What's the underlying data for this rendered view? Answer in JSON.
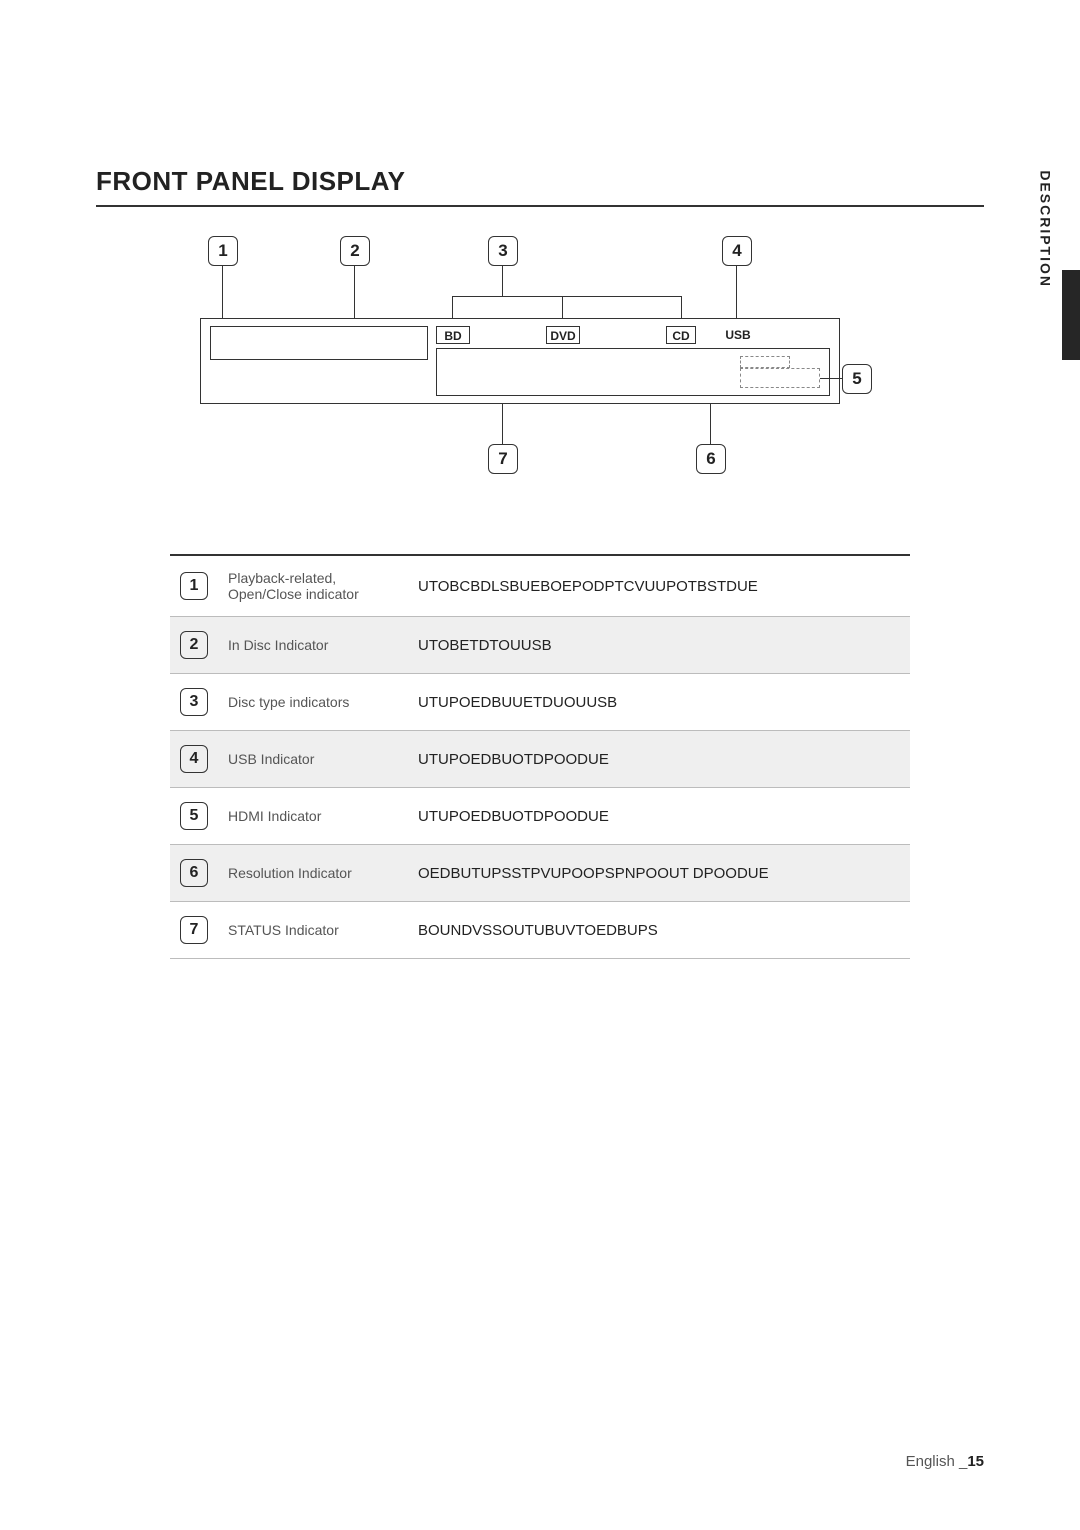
{
  "title": "FRONT PANEL DISPLAY",
  "side_label": "DESCRIPTION",
  "diagram": {
    "badges": {
      "bd": "BD",
      "dvd": "DVD",
      "cd": "CD",
      "usb": "USB"
    },
    "numbers": [
      "1",
      "2",
      "3",
      "4",
      "5",
      "6",
      "7"
    ]
  },
  "table": {
    "rows": [
      {
        "num": "1",
        "name": "Playback-related,\nOpen/Close indicator",
        "desc": "UTOBCBDLSBUEBOEPODPTCVUUPOTBSTDUE"
      },
      {
        "num": "2",
        "name": "In Disc Indicator",
        "desc": "UTOBETDTOUUSB"
      },
      {
        "num": "3",
        "name": "Disc type indicators",
        "desc": "UTUPOEDBUUETDUOUUSB"
      },
      {
        "num": "4",
        "name": "USB Indicator",
        "desc": "UTUPOEDBUOTDPOODUE"
      },
      {
        "num": "5",
        "name": "HDMI Indicator",
        "desc": "UTUPOEDBUOTDPOODUE"
      },
      {
        "num": "6",
        "name": "Resolution Indicator",
        "desc": "OEDBUTUPSSTPVUPOOPSPNPOOUT DPOODUE"
      },
      {
        "num": "7",
        "name": "STATUS Indicator",
        "desc": "BOUNDVSSOUTUBUVTOEDBUPS"
      }
    ]
  },
  "footer": {
    "lang": "English _",
    "page": "15"
  }
}
